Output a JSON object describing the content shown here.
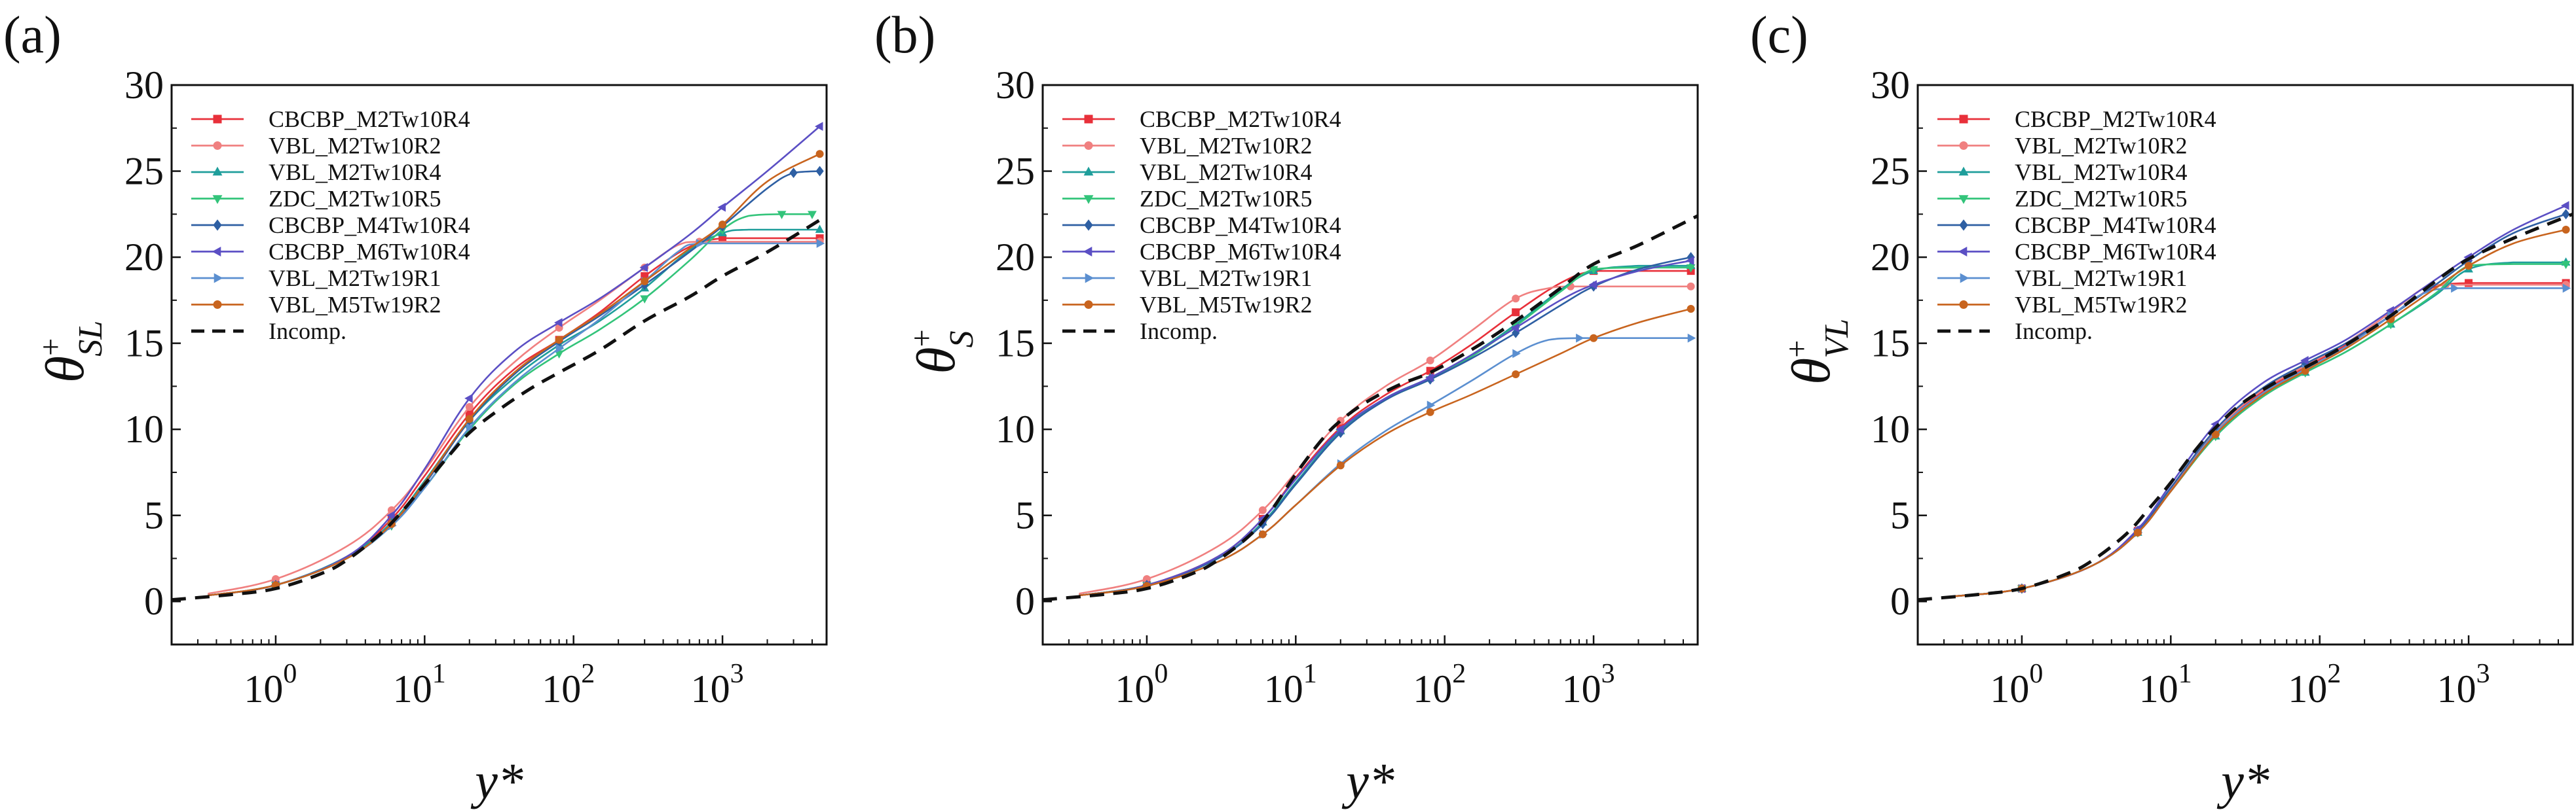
{
  "chart_data": [
    {
      "panel": "(a)",
      "type": "line",
      "ylabel": "θ+SL",
      "xlabel": "y*",
      "xscale": "log",
      "xlim": [
        0.2,
        5000
      ],
      "ylim": [
        -2.5,
        30
      ],
      "ytick_labels": [
        "0",
        "5",
        "10",
        "15",
        "20",
        "25",
        "30"
      ],
      "legend": "top-left",
      "series": [
        {
          "name": "CBCBP_M2Tw10R4",
          "color": "#e8303a",
          "marker": "square",
          "x": [
            0.35,
            1,
            3,
            6,
            10,
            20,
            40,
            80,
            150,
            300,
            600,
            1000,
            2000,
            4500
          ],
          "y": [
            0.35,
            0.95,
            2.6,
            4.8,
            7.3,
            10.9,
            13.5,
            15.2,
            16.8,
            18.9,
            20.6,
            21.1,
            21.1,
            21.1
          ]
        },
        {
          "name": "VBL_M2Tw10R2",
          "color": "#f08080",
          "marker": "circle",
          "x": [
            0.35,
            1,
            3,
            6,
            10,
            20,
            40,
            80,
            150,
            300,
            500,
            700,
            2000,
            4500
          ],
          "y": [
            0.45,
            1.3,
            3.2,
            5.3,
            7.6,
            11.3,
            13.9,
            15.9,
            17.5,
            19.4,
            20.7,
            20.9,
            20.9,
            20.9
          ]
        },
        {
          "name": "VBL_M2Tw10R4",
          "color": "#1f9e9b",
          "marker": "triangle",
          "x": [
            0.35,
            1,
            3,
            6,
            10,
            20,
            40,
            80,
            150,
            300,
            600,
            1000,
            1500,
            4500
          ],
          "y": [
            0.35,
            0.95,
            2.6,
            4.6,
            7,
            10.5,
            13,
            14.9,
            16.3,
            18.2,
            20.4,
            21.4,
            21.6,
            21.6
          ]
        },
        {
          "name": "ZDC_M2Tw10R5",
          "color": "#33c47a",
          "marker": "triangle-down",
          "x": [
            0.35,
            1,
            3,
            6,
            10,
            20,
            40,
            80,
            150,
            300,
            600,
            1000,
            1500,
            2500,
            4000
          ],
          "y": [
            0.35,
            0.95,
            2.5,
            4.4,
            6.6,
            10,
            12.6,
            14.4,
            15.8,
            17.6,
            19.8,
            21.6,
            22.4,
            22.5,
            22.5
          ]
        },
        {
          "name": "CBCBP_M4Tw10R4",
          "color": "#2e5fa3",
          "marker": "diamond",
          "x": [
            0.35,
            1,
            3,
            6,
            10,
            20,
            40,
            80,
            150,
            300,
            600,
            1000,
            2000,
            3000,
            4500
          ],
          "y": [
            0.35,
            0.95,
            2.5,
            4.5,
            6.8,
            10.5,
            13.2,
            15.1,
            16.6,
            18.4,
            20.3,
            21.8,
            24,
            24.9,
            25
          ]
        },
        {
          "name": "CBCBP_M6Tw10R4",
          "color": "#5b4fc4",
          "marker": "triangle-left",
          "x": [
            0.35,
            1,
            3,
            6,
            10,
            20,
            40,
            80,
            150,
            300,
            600,
            1000,
            2000,
            4500
          ],
          "y": [
            0.35,
            0.95,
            2.6,
            5,
            7.7,
            11.8,
            14.5,
            16.2,
            17.6,
            19.4,
            21.3,
            22.9,
            25,
            27.6
          ]
        },
        {
          "name": "VBL_M2Tw19R1",
          "color": "#5b8fd0",
          "marker": "triangle-right",
          "x": [
            0.35,
            1,
            3,
            6,
            10,
            20,
            40,
            80,
            150,
            300,
            500,
            700,
            2000,
            4500
          ],
          "y": [
            0.35,
            0.95,
            2.5,
            4.4,
            6.6,
            10.1,
            12.7,
            14.7,
            16.4,
            18.6,
            20.3,
            20.8,
            20.8,
            20.8
          ]
        },
        {
          "name": "VBL_M5Tw19R2",
          "color": "#c8641e",
          "marker": "circle",
          "x": [
            0.35,
            1,
            3,
            6,
            10,
            20,
            40,
            80,
            150,
            300,
            600,
            1000,
            2000,
            4500
          ],
          "y": [
            0.35,
            0.95,
            2.5,
            4.5,
            6.9,
            10.6,
            13.3,
            15.2,
            16.7,
            18.6,
            20.5,
            21.9,
            24.4,
            26
          ]
        },
        {
          "name": "Incomp.",
          "color": "#111111",
          "marker": "none",
          "dash": true,
          "x": [
            0.2,
            0.5,
            1,
            2,
            3,
            5,
            7,
            10,
            15,
            20,
            30,
            50,
            80,
            150,
            300,
            600,
            1000,
            2000,
            5000
          ],
          "y": [
            0.1,
            0.4,
            0.75,
            1.6,
            2.4,
            3.9,
            5.2,
            6.8,
            8.6,
            9.8,
            11,
            12.3,
            13.3,
            14.6,
            16.3,
            17.7,
            18.9,
            20.3,
            22.4
          ]
        }
      ]
    },
    {
      "panel": "(b)",
      "type": "line",
      "ylabel": "θ+S",
      "xlabel": "y*",
      "xscale": "log",
      "xlim": [
        0.2,
        5000
      ],
      "ylim": [
        -2.5,
        30
      ],
      "ytick_labels": [
        "0",
        "5",
        "10",
        "15",
        "20",
        "25",
        "30"
      ],
      "legend": "top-left",
      "series": [
        {
          "name": "CBCBP_M2Tw10R4",
          "color": "#e8303a",
          "marker": "square",
          "x": [
            0.35,
            1,
            3,
            6,
            10,
            20,
            40,
            80,
            150,
            300,
            600,
            1000,
            2000,
            4500
          ],
          "y": [
            0.35,
            0.95,
            2.6,
            4.8,
            7.2,
            10.1,
            12,
            13.4,
            14.9,
            16.8,
            18.5,
            19.2,
            19.2,
            19.2
          ]
        },
        {
          "name": "VBL_M2Tw10R2",
          "color": "#f08080",
          "marker": "circle",
          "x": [
            0.35,
            1,
            3,
            6,
            10,
            20,
            40,
            80,
            150,
            300,
            500,
            700,
            2000,
            4500
          ],
          "y": [
            0.45,
            1.3,
            3.2,
            5.3,
            7.5,
            10.5,
            12.5,
            14,
            15.7,
            17.6,
            18.2,
            18.3,
            18.3,
            18.3
          ]
        },
        {
          "name": "VBL_M2Tw10R4",
          "color": "#1f9e9b",
          "marker": "triangle",
          "x": [
            0.35,
            1,
            3,
            6,
            10,
            20,
            40,
            80,
            150,
            300,
            600,
            1000,
            2000,
            4500
          ],
          "y": [
            0.35,
            0.95,
            2.5,
            4.6,
            6.9,
            9.9,
            11.8,
            13,
            14.3,
            16.1,
            18.1,
            19.2,
            19.5,
            19.5
          ]
        },
        {
          "name": "ZDC_M2Tw10R5",
          "color": "#33c47a",
          "marker": "triangle-down",
          "x": [
            0.35,
            1,
            3,
            6,
            10,
            20,
            40,
            80,
            150,
            300,
            600,
            1000,
            2000,
            4500
          ],
          "y": [
            0.35,
            0.95,
            2.5,
            4.5,
            6.8,
            9.8,
            11.7,
            12.9,
            14.2,
            16,
            18,
            19.3,
            19.4,
            19.4
          ]
        },
        {
          "name": "CBCBP_M4Tw10R4",
          "color": "#2e5fa3",
          "marker": "diamond",
          "x": [
            0.35,
            1,
            3,
            6,
            10,
            20,
            40,
            80,
            150,
            300,
            600,
            1000,
            2000,
            4500
          ],
          "y": [
            0.35,
            0.95,
            2.5,
            4.5,
            6.8,
            9.8,
            11.7,
            12.9,
            14.1,
            15.6,
            17.2,
            18.3,
            19.3,
            20
          ]
        },
        {
          "name": "CBCBP_M6Tw10R4",
          "color": "#5b4fc4",
          "marker": "triangle-left",
          "x": [
            0.35,
            1,
            3,
            6,
            10,
            20,
            40,
            80,
            150,
            300,
            600,
            1000,
            2000,
            4500
          ],
          "y": [
            0.35,
            0.95,
            2.6,
            4.8,
            7.1,
            10,
            11.8,
            13,
            14.3,
            15.9,
            17.5,
            18.4,
            19.2,
            19.8
          ]
        },
        {
          "name": "VBL_M2Tw19R1",
          "color": "#5b8fd0",
          "marker": "triangle-right",
          "x": [
            0.35,
            1,
            3,
            6,
            10,
            20,
            40,
            80,
            150,
            300,
            500,
            800,
            2000,
            4500
          ],
          "y": [
            0.35,
            0.9,
            2.3,
            3.9,
            5.6,
            8,
            9.9,
            11.4,
            12.8,
            14.4,
            15.2,
            15.3,
            15.3,
            15.3
          ]
        },
        {
          "name": "VBL_M5Tw19R2",
          "color": "#c8641e",
          "marker": "circle",
          "x": [
            0.35,
            1,
            3,
            6,
            10,
            20,
            40,
            80,
            150,
            300,
            600,
            1000,
            2000,
            4500
          ],
          "y": [
            0.35,
            0.9,
            2.3,
            3.9,
            5.6,
            7.9,
            9.7,
            11,
            12,
            13.2,
            14.4,
            15.3,
            16.2,
            17
          ]
        },
        {
          "name": "Incomp.",
          "color": "#111111",
          "marker": "none",
          "dash": true,
          "x": [
            0.2,
            0.5,
            1,
            2,
            3,
            5,
            7,
            10,
            15,
            20,
            30,
            50,
            80,
            150,
            300,
            600,
            1000,
            2000,
            5000
          ],
          "y": [
            0.1,
            0.4,
            0.75,
            1.6,
            2.4,
            3.9,
            5.4,
            7.4,
            9.4,
            10.5,
            11.6,
            12.6,
            13.3,
            14.6,
            16.3,
            18.2,
            19.6,
            20.7,
            22.4
          ]
        }
      ]
    },
    {
      "panel": "(c)",
      "type": "line",
      "ylabel": "θ+VL",
      "xlabel": "y*",
      "xscale": "log",
      "xlim": [
        0.2,
        5000
      ],
      "ylim": [
        -2.5,
        30
      ],
      "ytick_labels": [
        "0",
        "5",
        "10",
        "15",
        "20",
        "25",
        "30"
      ],
      "legend": "top-left",
      "series": [
        {
          "name": "CBCBP_M2Tw10R4",
          "color": "#e8303a",
          "marker": "square",
          "x": [
            0.35,
            1,
            3,
            6,
            10,
            20,
            40,
            80,
            150,
            300,
            600,
            1000,
            2000,
            4500
          ],
          "y": [
            0.3,
            0.75,
            2.1,
            4.1,
            6.5,
            9.9,
            12.1,
            13.6,
            14.9,
            16.6,
            18.3,
            18.5,
            18.5,
            18.5
          ]
        },
        {
          "name": "VBL_M2Tw10R2",
          "color": "#f08080",
          "marker": "circle",
          "x": [
            0.35,
            1,
            3,
            6,
            10,
            20,
            40,
            80,
            150,
            300,
            500,
            700,
            2000,
            4500
          ],
          "y": [
            0.3,
            0.75,
            2.1,
            4.1,
            6.5,
            9.9,
            12.2,
            13.7,
            15,
            16.8,
            18.2,
            18.4,
            18.4,
            18.4
          ]
        },
        {
          "name": "VBL_M2Tw10R4",
          "color": "#1f9e9b",
          "marker": "triangle",
          "x": [
            0.35,
            1,
            3,
            6,
            10,
            20,
            40,
            80,
            150,
            300,
            600,
            1000,
            2000,
            4500
          ],
          "y": [
            0.3,
            0.75,
            2.1,
            4,
            6.4,
            9.6,
            11.8,
            13.3,
            14.5,
            16.1,
            17.8,
            19.3,
            19.7,
            19.7
          ]
        },
        {
          "name": "ZDC_M2Tw10R5",
          "color": "#33c47a",
          "marker": "triangle-down",
          "x": [
            0.35,
            1,
            3,
            6,
            10,
            20,
            40,
            80,
            150,
            300,
            600,
            1000,
            2000,
            4500
          ],
          "y": [
            0.3,
            0.75,
            2.1,
            4,
            6.4,
            9.6,
            11.8,
            13.3,
            14.5,
            16.1,
            17.9,
            19.5,
            19.6,
            19.6
          ]
        },
        {
          "name": "CBCBP_M4Tw10R4",
          "color": "#2e5fa3",
          "marker": "diamond",
          "x": [
            0.35,
            1,
            3,
            6,
            10,
            20,
            40,
            80,
            150,
            300,
            600,
            1000,
            2000,
            4500
          ],
          "y": [
            0.3,
            0.75,
            2.1,
            4.1,
            6.6,
            10,
            12.3,
            13.8,
            15,
            16.6,
            18.4,
            19.8,
            21.4,
            22.5
          ]
        },
        {
          "name": "CBCBP_M6Tw10R4",
          "color": "#5b4fc4",
          "marker": "triangle-left",
          "x": [
            0.35,
            1,
            3,
            6,
            10,
            20,
            40,
            80,
            150,
            300,
            600,
            1000,
            2000,
            4500
          ],
          "y": [
            0.3,
            0.75,
            2.1,
            4.2,
            6.8,
            10.3,
            12.6,
            14,
            15.2,
            16.9,
            18.7,
            20,
            21.6,
            23
          ]
        },
        {
          "name": "VBL_M2Tw19R1",
          "color": "#5b8fd0",
          "marker": "triangle-right",
          "x": [
            0.35,
            1,
            3,
            6,
            10,
            20,
            40,
            80,
            150,
            300,
            500,
            800,
            2000,
            4500
          ],
          "y": [
            0.3,
            0.75,
            2.1,
            4,
            6.4,
            9.8,
            12,
            13.5,
            14.8,
            16.6,
            17.9,
            18.2,
            18.2,
            18.2
          ]
        },
        {
          "name": "VBL_M5Tw19R2",
          "color": "#c8641e",
          "marker": "circle",
          "x": [
            0.35,
            1,
            3,
            6,
            10,
            20,
            40,
            80,
            150,
            300,
            600,
            1000,
            2000,
            4500
          ],
          "y": [
            0.3,
            0.75,
            2.1,
            4,
            6.4,
            9.7,
            11.9,
            13.4,
            14.7,
            16.4,
            18.2,
            19.5,
            20.8,
            21.6
          ]
        },
        {
          "name": "Incomp.",
          "color": "#111111",
          "marker": "none",
          "dash": true,
          "x": [
            0.2,
            0.5,
            1,
            2,
            3,
            5,
            7,
            10,
            15,
            20,
            30,
            50,
            80,
            150,
            300,
            600,
            1000,
            2000,
            5000
          ],
          "y": [
            0.1,
            0.4,
            0.75,
            1.6,
            2.4,
            3.9,
            5.3,
            6.9,
            8.9,
            10.1,
            11.5,
            12.7,
            13.6,
            14.9,
            16.6,
            18.6,
            19.9,
            21.1,
            22.5
          ]
        }
      ]
    }
  ]
}
